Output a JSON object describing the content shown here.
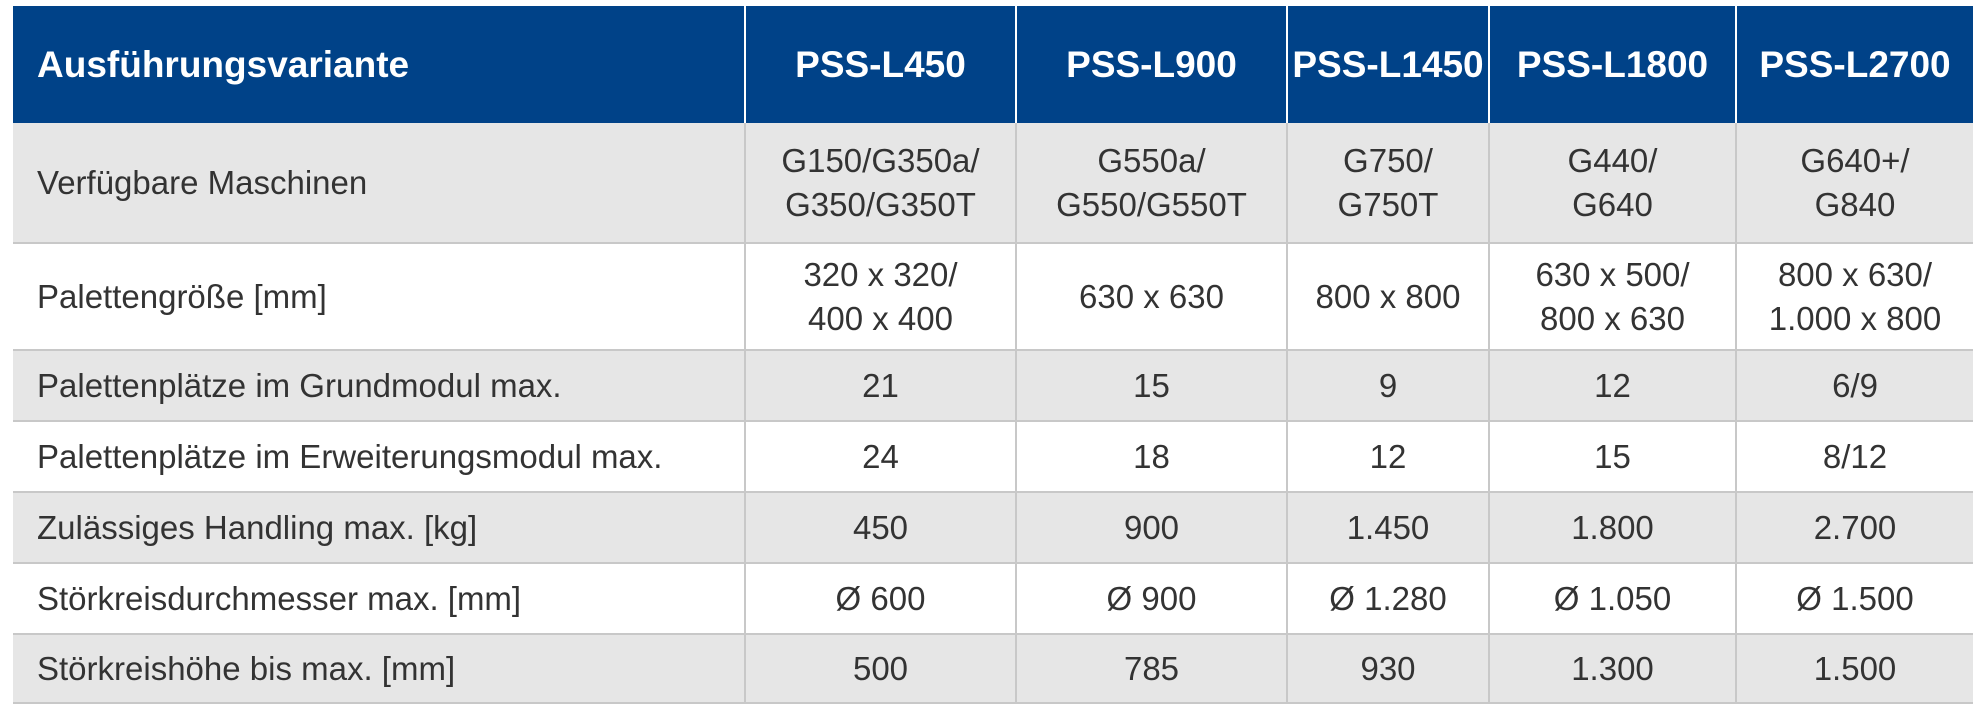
{
  "table": {
    "header": [
      "Ausführungsvariante",
      "PSS-L450",
      "PSS-L900",
      "PSS-L1450",
      "PSS-L1800",
      "PSS-L2700"
    ],
    "rows": [
      [
        "Verfügbare Maschinen",
        "G150/G350a/\nG350/G350T",
        "G550a/\nG550/G550T",
        "G750/\nG750T",
        "G440/\nG640",
        "G640+/\nG840"
      ],
      [
        "Palettengröße [mm]",
        "320 x 320/\n400 x 400",
        "630 x 630",
        "800 x 800",
        "630 x 500/\n800 x 630",
        "800 x 630/\n1.000 x 800"
      ],
      [
        "Palettenplätze im Grundmodul max.",
        "21",
        "15",
        "9",
        "12",
        "6/9"
      ],
      [
        "Palettenplätze im Erweiterungsmodul max.",
        "24",
        "18",
        "12",
        "15",
        "8/12"
      ],
      [
        "Zulässiges Handling max. [kg]",
        "450",
        "900",
        "1.450",
        "1.800",
        "2.700"
      ],
      [
        "Störkreisdurchmesser max. [mm]",
        "Ø 600",
        "Ø 900",
        "Ø 1.280",
        "Ø 1.050",
        "Ø 1.500"
      ],
      [
        "Störkreishöhe bis max. [mm]",
        "500",
        "785",
        "930",
        "1.300",
        "1.500"
      ]
    ]
  }
}
